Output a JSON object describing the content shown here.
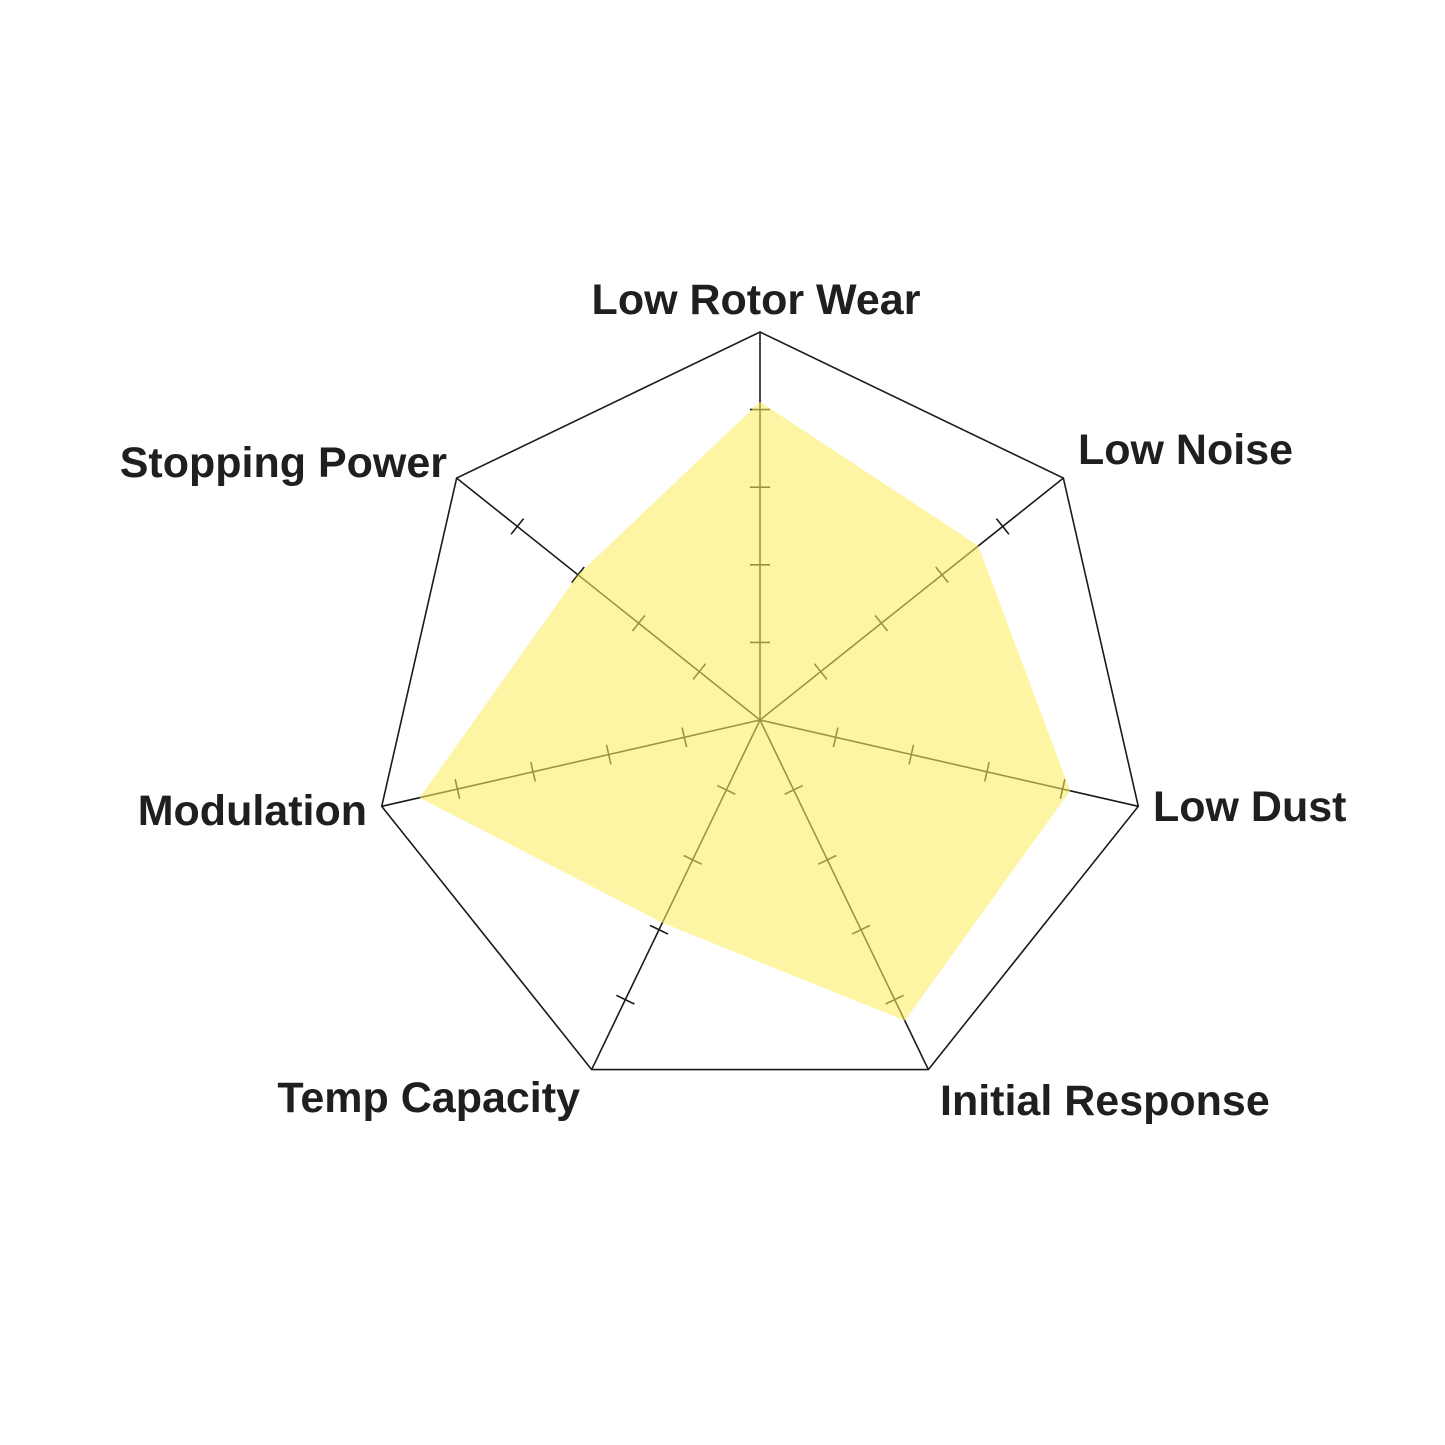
{
  "chart_data": {
    "type": "radar",
    "title": "",
    "axes": [
      "Low Rotor Wear",
      "Low Noise",
      "Low Dust",
      "Initial Response",
      "Temp Capacity",
      "Modulation",
      "Stopping Power"
    ],
    "series": [
      {
        "values": [
          4.1,
          3.6,
          4.1,
          4.3,
          2.9,
          4.5,
          3.0
        ],
        "color": "#fcee62"
      }
    ],
    "range": [
      0,
      5
    ],
    "ticks": [
      1,
      2,
      3,
      4
    ],
    "tick_labels_shown": false,
    "grid": "outer heptagon only",
    "legend": "none"
  }
}
